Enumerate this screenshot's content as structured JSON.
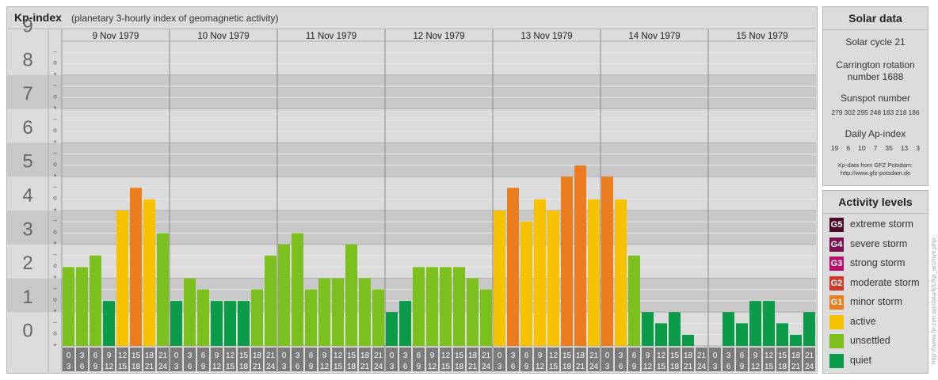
{
  "header": {
    "title": "Kp-index",
    "subtitle": "(planetary 3-hourly index of geomagnetic activity)"
  },
  "chart_data": {
    "type": "bar",
    "ylim": [
      0,
      9
    ],
    "y_ticks": [
      "0",
      "1",
      "2",
      "3",
      "4",
      "5",
      "6",
      "7",
      "8",
      "9"
    ],
    "minor_tick_cycle": [
      "+",
      "o",
      "–"
    ],
    "days": [
      "9 Nov 1979",
      "10 Nov 1979",
      "11 Nov 1979",
      "12 Nov 1979",
      "13 Nov 1979",
      "14 Nov 1979",
      "15 Nov 1979"
    ],
    "interval_starts": [
      "0",
      "3",
      "6",
      "9",
      "12",
      "15",
      "18",
      "21"
    ],
    "interval_ends": [
      "3",
      "6",
      "9",
      "12",
      "15",
      "18",
      "21",
      "24"
    ],
    "values": [
      [
        2.33,
        2.33,
        2.67,
        1.33,
        4.0,
        4.67,
        4.33,
        3.33
      ],
      [
        1.33,
        2.0,
        1.67,
        1.33,
        1.33,
        1.33,
        1.67,
        2.67
      ],
      [
        3.0,
        3.33,
        1.67,
        2.0,
        2.0,
        3.0,
        2.0,
        1.67
      ],
      [
        1.0,
        1.33,
        2.33,
        2.33,
        2.33,
        2.33,
        2.0,
        1.67
      ],
      [
        4.0,
        4.67,
        3.67,
        4.33,
        4.0,
        5.0,
        5.33,
        4.33
      ],
      [
        5.0,
        4.33,
        2.67,
        1.0,
        0.67,
        1.0,
        0.33,
        0.0
      ],
      [
        0.0,
        1.0,
        0.67,
        1.33,
        1.33,
        0.67,
        0.33,
        1.0
      ]
    ],
    "colors": {
      "quiet": "#0a9a48",
      "unsettled": "#7cc01e",
      "active": "#f7c300",
      "minor": "#eb7d1e"
    }
  },
  "solar": {
    "heading": "Solar data",
    "cycle": "Solar cycle 21",
    "carrington_line1": "Carrington rotation",
    "carrington_line2": "number 1688",
    "sunspot_label": "Sunspot number",
    "sunspot_values": [
      "279",
      "302",
      "295",
      "248",
      "183",
      "218",
      "186"
    ],
    "ap_label": "Daily Ap-index",
    "ap_values": [
      "19",
      "6",
      "10",
      "7",
      "35",
      "13",
      "3"
    ],
    "source_line1": "Kp-data from GFZ Potsdam:",
    "source_line2": "http://www.gfz-potsdam.de"
  },
  "legend": {
    "heading": "Activity levels",
    "items": [
      {
        "badge": "G5",
        "label": "extreme storm",
        "color": "#4a0a28"
      },
      {
        "badge": "G4",
        "label": "severe storm",
        "color": "#7a1050"
      },
      {
        "badge": "G3",
        "label": "strong storm",
        "color": "#b8106a"
      },
      {
        "badge": "G2",
        "label": "moderate storm",
        "color": "#d03a28"
      },
      {
        "badge": "G1",
        "label": "minor storm",
        "color": "#eb7d1e"
      },
      {
        "badge": "",
        "label": "active",
        "color": "#f7c300"
      },
      {
        "badge": "",
        "label": "unsettled",
        "color": "#7cc01e"
      },
      {
        "badge": "",
        "label": "quiet",
        "color": "#0a9a48"
      }
    ]
  },
  "watermark": "http://www.fe-zen.ap/data/k/c/kp_archive.php"
}
